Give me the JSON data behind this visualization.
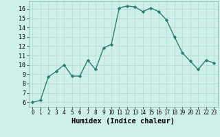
{
  "x": [
    0,
    1,
    2,
    3,
    4,
    5,
    6,
    7,
    8,
    9,
    10,
    11,
    12,
    13,
    14,
    15,
    16,
    17,
    18,
    19,
    20,
    21,
    22,
    23
  ],
  "y": [
    6,
    6.2,
    8.7,
    9.3,
    10.0,
    8.8,
    8.8,
    10.5,
    9.5,
    11.8,
    12.2,
    16.1,
    16.3,
    16.2,
    15.7,
    16.1,
    15.7,
    14.8,
    13.0,
    11.3,
    10.4,
    9.5,
    10.5,
    10.2
  ],
  "line_color": "#2d7d6e",
  "marker": "D",
  "markersize": 2.2,
  "linewidth": 1.0,
  "bg_color": "#cff0ea",
  "grid_color": "#b0d8d2",
  "xlabel": "Humidex (Indice chaleur)",
  "xlabel_fontsize": 7.5,
  "ylabel_ticks": [
    6,
    7,
    8,
    9,
    10,
    11,
    12,
    13,
    14,
    15,
    16
  ],
  "xlim": [
    -0.5,
    23.5
  ],
  "ylim": [
    5.5,
    16.8
  ],
  "ytick_fontsize": 6.0,
  "xtick_fontsize": 5.5
}
